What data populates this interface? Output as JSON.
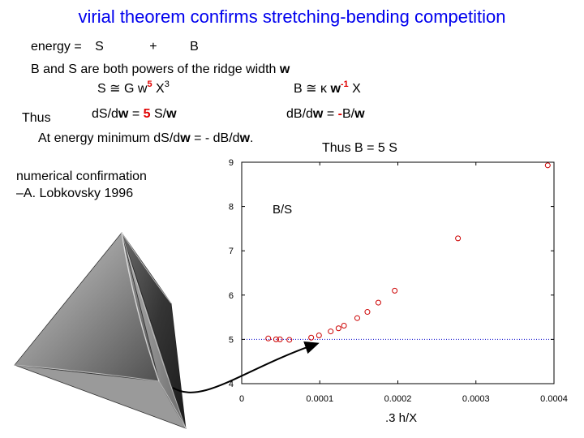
{
  "title": "virial theorem confirms stretching-bending competition",
  "energy": {
    "label": "energy =",
    "S": "S",
    "plus": "+",
    "B": "B"
  },
  "powers": {
    "text": "B and S are both powers of the ridge width",
    "w": "w"
  },
  "S_formula": {
    "lhs": "S",
    "approx": "≅",
    "G": "G",
    "w": "w",
    "exp": "5",
    "X": "X",
    "Xexp": "3"
  },
  "B_formula": {
    "lhs": "B",
    "approx": "≅",
    "kappa": "κ",
    "w": "w",
    "exp": "-1",
    "X": "X"
  },
  "thus": "Thus",
  "dS": {
    "a": "dS/d",
    "w": "w",
    "eq": " = ",
    "five": "5",
    "b": " S/",
    "w2": "w"
  },
  "dB": {
    "a": "dB/d",
    "w": "w",
    "eq": "  = ",
    "minus": "-",
    "b": "B/",
    "w2": "w"
  },
  "minimum": {
    "a": "At energy minimum dS/d",
    "w1": "w",
    "b": " = - dB/d",
    "w2": "w",
    "c": "."
  },
  "thusB": "Thus B = 5 S",
  "confirmation": {
    "line1": "numerical confirmation",
    "line2": "–A. Lobkovsky 1996"
  },
  "colors": {
    "title": "#0000ee",
    "emphasis": "#e00000",
    "points": "#cc0000",
    "refline": "#0000cc"
  },
  "chart_data": {
    "type": "scatter",
    "title": "B/S",
    "xlabel": ".3 h/X",
    "ylabel": "",
    "xlim": [
      0,
      0.0004
    ],
    "ylim": [
      4,
      9
    ],
    "xticks": [
      0,
      0.0001,
      0.0002,
      0.0003,
      0.0004
    ],
    "xtick_labels": [
      "0",
      "0.0001",
      "0.0002",
      "0.0003",
      "0.0004"
    ],
    "yticks": [
      4,
      5,
      6,
      7,
      8,
      9
    ],
    "ytick_labels": [
      "4",
      "5",
      "6",
      "7",
      "8",
      "9"
    ],
    "reference_line": {
      "y": 5,
      "style": "dotted"
    },
    "marker": "open-circle",
    "x": [
      3.4e-05,
      4.4e-05,
      4.9e-05,
      6.1e-05,
      8.9e-05,
      9.9e-05,
      0.000114,
      0.000124,
      0.000131,
      0.000148,
      0.000161,
      0.000175,
      0.000196,
      0.000277,
      0.000392
    ],
    "y": [
      5.02,
      5.0,
      5.0,
      4.99,
      5.04,
      5.09,
      5.18,
      5.25,
      5.31,
      5.48,
      5.62,
      5.83,
      6.1,
      7.28,
      8.93
    ]
  }
}
